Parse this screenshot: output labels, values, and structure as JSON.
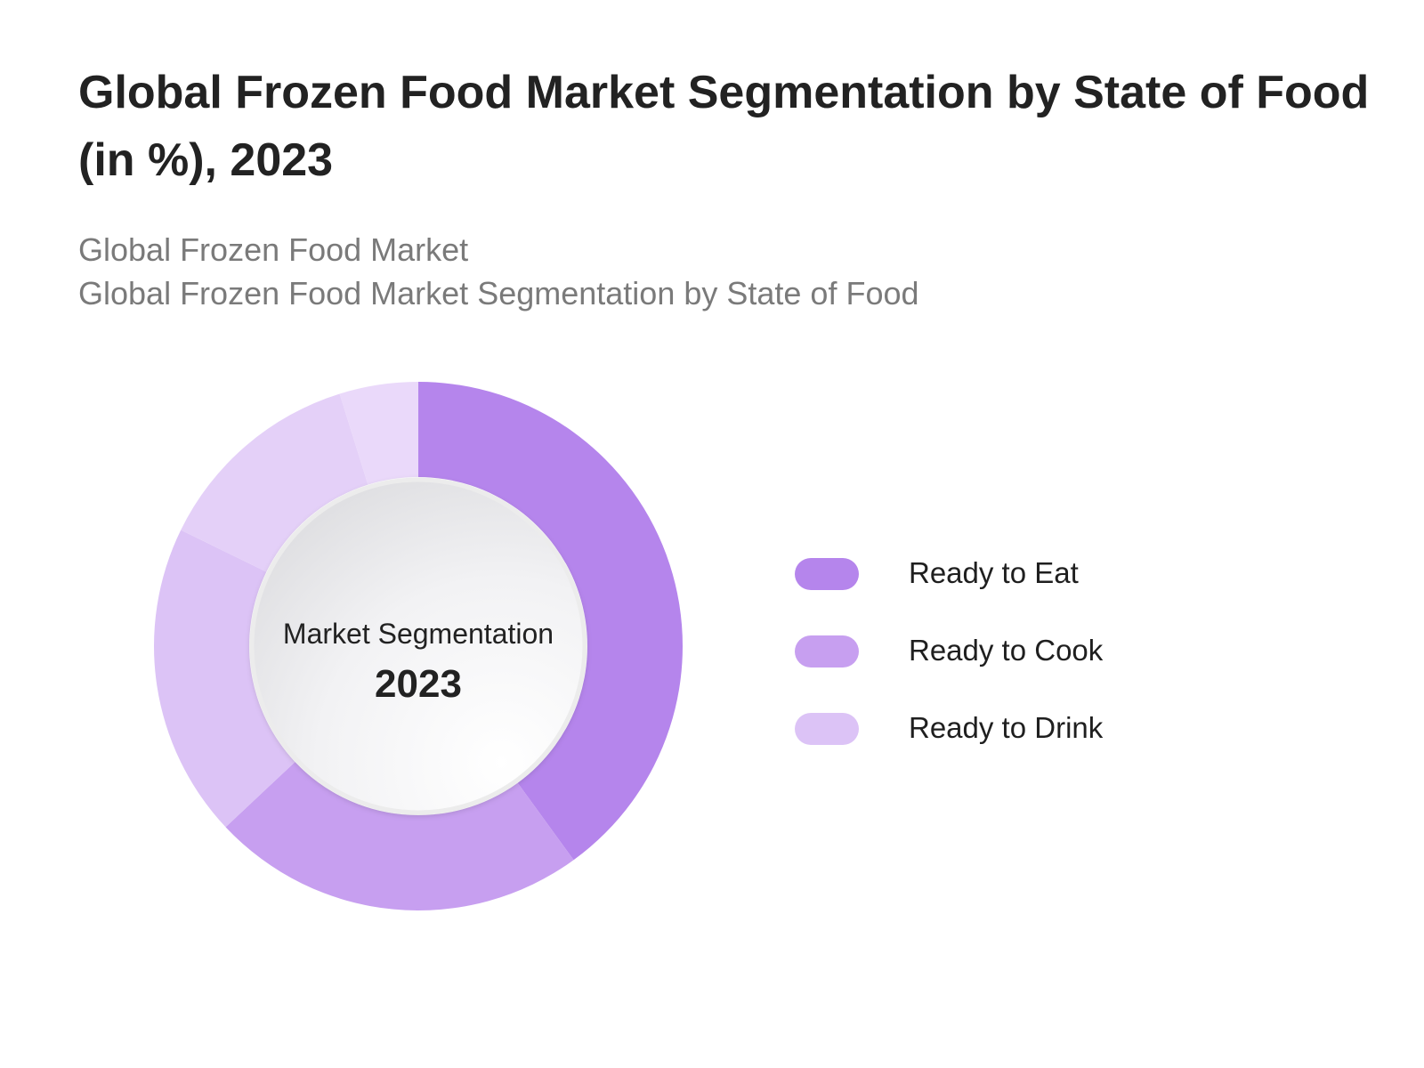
{
  "chart_data": {
    "type": "pie",
    "title": "Global Frozen Food Market Segmentation by State of Food (in %), 2023",
    "subtitle_lines": [
      "Global Frozen Food Market",
      "Global Frozen Food Market Segmentation by State of Food"
    ],
    "center_label": "Market Segmentation",
    "center_year": "2023",
    "legend_position": "right",
    "slices": [
      {
        "name": "Ready to Eat",
        "value": 40,
        "color": "#b585ec"
      },
      {
        "name": "Ready to Cook",
        "value": 23,
        "color": "#c79ff0"
      },
      {
        "name": "Ready to Drink",
        "value": 37,
        "color": "#dcc3f6"
      }
    ],
    "extra_slice_colors": [
      "#e4d0f8",
      "#ead9fa"
    ]
  }
}
